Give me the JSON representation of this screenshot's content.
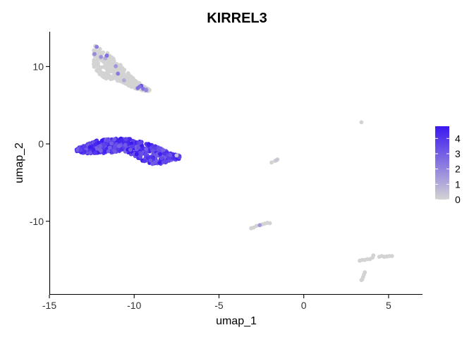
{
  "chart_data": {
    "type": "scatter",
    "title": "KIRREL3",
    "xlabel": "umap_1",
    "ylabel": "umap_2",
    "xlim": [
      -15,
      7
    ],
    "ylim": [
      -19.5,
      14.5
    ],
    "x_ticks": [
      -15,
      -10,
      -5,
      0,
      5
    ],
    "x_tick_labels": [
      "-15",
      "-10",
      "-5",
      "0",
      "5"
    ],
    "y_ticks": [
      10,
      0,
      -10
    ],
    "y_tick_labels": [
      "10",
      "0",
      "-10"
    ],
    "grid": false,
    "legend": {
      "placement": "right",
      "type": "colorbar",
      "labels": [
        "4",
        "3",
        "2",
        "1",
        "0"
      ],
      "values": [
        4,
        3,
        2,
        1,
        0
      ],
      "range": [
        0,
        4.8
      ],
      "low_color": "#d3d3d3",
      "high_color": "#3a18f0"
    },
    "clusters": [
      {
        "shape": "arc",
        "x_range": [
          -12.4,
          -9.1
        ],
        "y_top": [
          12.8,
          12.7,
          12.2,
          11.6,
          11.0,
          10.4,
          9.8,
          9.1,
          8.4,
          7.9,
          7.4,
          7.0
        ],
        "y_bottom": [
          10.1,
          9.0,
          8.5,
          8.4,
          8.3,
          8.1,
          7.9,
          7.5,
          7.2,
          7.0,
          6.9,
          6.8
        ],
        "n": 420,
        "expression_fraction": 0.04,
        "expression_range": [
          1.0,
          3.5
        ]
      },
      {
        "shape": "arc",
        "x_range": [
          -13.4,
          -7.3
        ],
        "y_top": [
          -0.6,
          -0.1,
          0.4,
          0.6,
          0.7,
          0.7,
          0.6,
          0.3,
          -0.1,
          -0.6,
          -1.2,
          -1.5
        ],
        "y_bottom": [
          -1.1,
          -1.2,
          -1.3,
          -1.2,
          -1.1,
          -1.1,
          -1.4,
          -2.2,
          -2.6,
          -2.6,
          -2.2,
          -1.9
        ],
        "n": 640,
        "expression_fraction": 0.94,
        "expression_range": [
          2.8,
          4.8
        ]
      }
    ],
    "points": [
      {
        "x": -7.4,
        "y": -1.4,
        "value": 0
      },
      {
        "x": -7.35,
        "y": -1.6,
        "value": 0
      },
      {
        "x": -7.5,
        "y": -1.5,
        "value": 0.5
      },
      {
        "x": 3.4,
        "y": 2.8,
        "value": 0
      },
      {
        "x": -1.9,
        "y": -2.4,
        "value": 0
      },
      {
        "x": -1.7,
        "y": -2.2,
        "value": 0
      },
      {
        "x": -1.55,
        "y": -2.0,
        "value": 0
      },
      {
        "x": -1.6,
        "y": -2.1,
        "value": 0.3
      },
      {
        "x": -3.1,
        "y": -10.9,
        "value": 0
      },
      {
        "x": -2.95,
        "y": -10.8,
        "value": 0
      },
      {
        "x": -2.8,
        "y": -10.6,
        "value": 0
      },
      {
        "x": -2.6,
        "y": -10.5,
        "value": 1.5
      },
      {
        "x": -2.45,
        "y": -10.4,
        "value": 0
      },
      {
        "x": -2.3,
        "y": -10.3,
        "value": 0
      },
      {
        "x": -2.15,
        "y": -10.2,
        "value": 0
      },
      {
        "x": -2.0,
        "y": -10.25,
        "value": 0
      },
      {
        "x": 3.3,
        "y": -15.1,
        "value": 0
      },
      {
        "x": 3.45,
        "y": -15.0,
        "value": 0
      },
      {
        "x": 3.6,
        "y": -15.0,
        "value": 0
      },
      {
        "x": 3.75,
        "y": -14.9,
        "value": 0
      },
      {
        "x": 3.9,
        "y": -14.9,
        "value": 0
      },
      {
        "x": 4.05,
        "y": -14.7,
        "value": 0
      },
      {
        "x": 4.1,
        "y": -14.4,
        "value": 0
      },
      {
        "x": 4.45,
        "y": -14.6,
        "value": 0
      },
      {
        "x": 4.6,
        "y": -14.5,
        "value": 0
      },
      {
        "x": 4.75,
        "y": -14.6,
        "value": 0
      },
      {
        "x": 4.9,
        "y": -14.55,
        "value": 0
      },
      {
        "x": 5.05,
        "y": -14.5,
        "value": 0
      },
      {
        "x": 5.2,
        "y": -14.5,
        "value": 0
      },
      {
        "x": 3.6,
        "y": -16.6,
        "value": 0
      },
      {
        "x": 3.55,
        "y": -16.9,
        "value": 0
      },
      {
        "x": 3.5,
        "y": -17.2,
        "value": 0
      },
      {
        "x": 3.45,
        "y": -17.5,
        "value": 0
      },
      {
        "x": 3.4,
        "y": -17.6,
        "value": 0
      }
    ]
  }
}
